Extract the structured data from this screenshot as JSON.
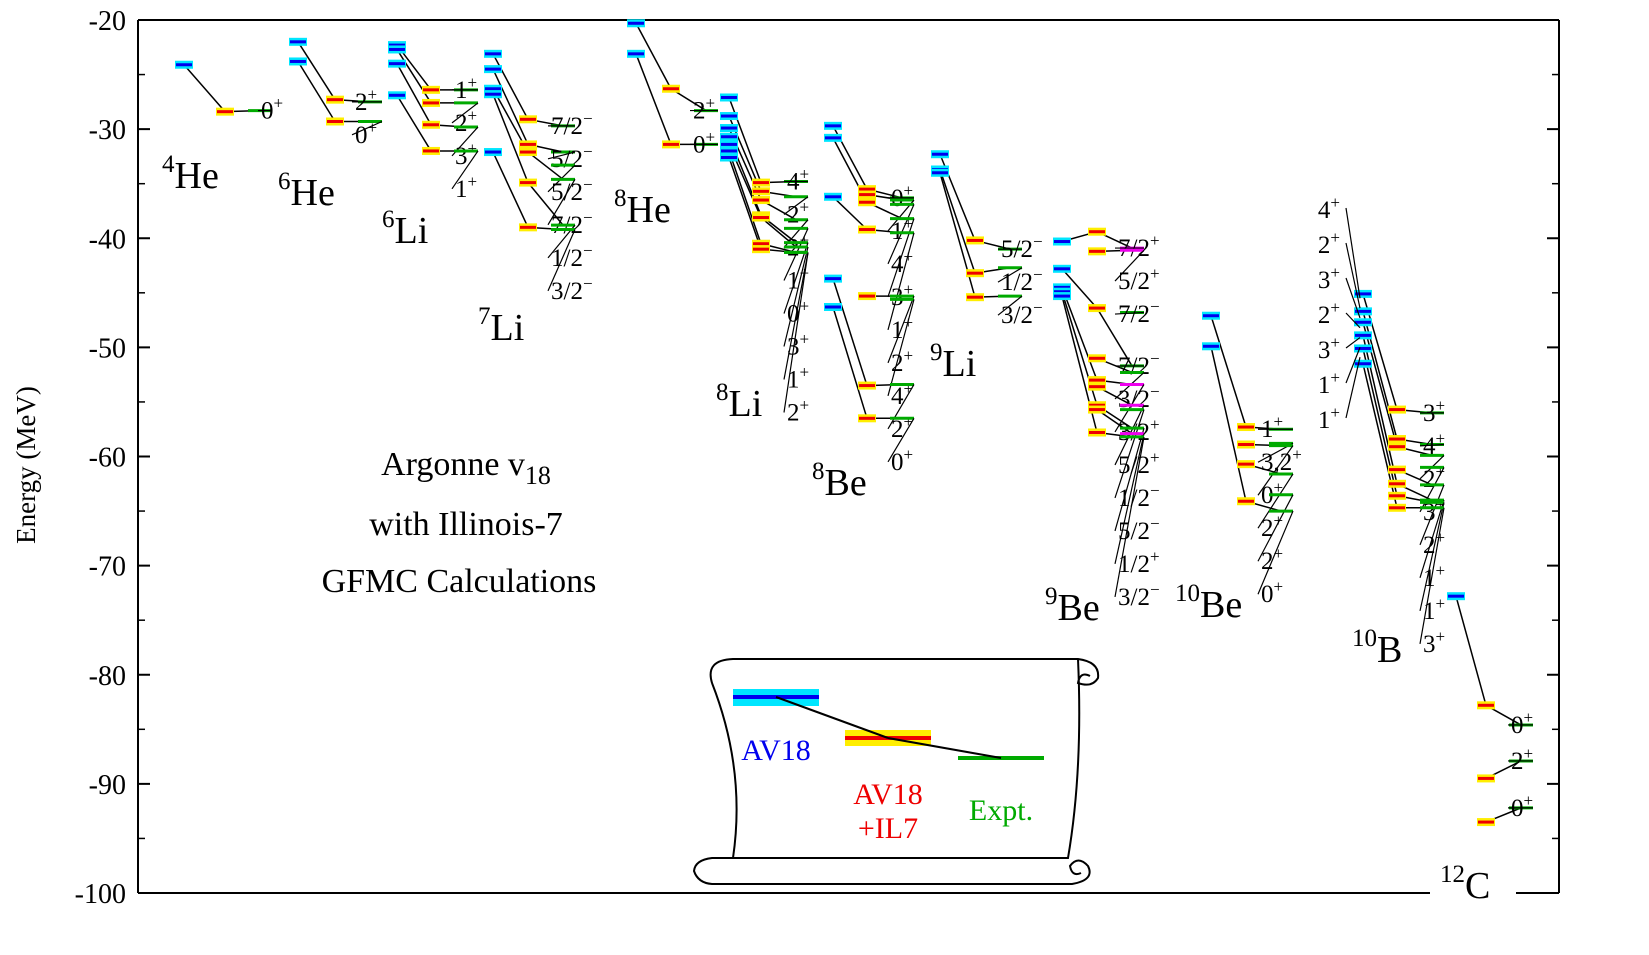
{
  "chart_data": {
    "type": "level-scheme",
    "ylabel": "Energy (MeV)",
    "ylim": [
      -100,
      -20
    ],
    "yticks": [
      -20,
      -30,
      -40,
      -50,
      -60,
      -70,
      -80,
      -90,
      -100
    ],
    "grid": false,
    "annotation": {
      "line1": "Argonne v",
      "sub": "18",
      "line2": "with Illinois-7",
      "line3": "GFMC Calculations"
    },
    "legend": {
      "placement": "bottom-center (scroll)",
      "av18_energy": -82,
      "av18il7_energy": -86,
      "expt_energy": -87.7,
      "av18_label": "AV18",
      "av18il7_label_1": "AV18",
      "av18il7_label_2": "+IL7",
      "expt_label": "Expt."
    },
    "colors": {
      "av18": "#0000ee",
      "av18_band": "#00e6ff",
      "av18il7": "#ee0000",
      "av18il7_band": "#ffee00",
      "expt": "#00aa00",
      "expt_unnatural": "#ee00ee",
      "connector": "#000000"
    },
    "nuclei": [
      {
        "name": "He",
        "mass": "4",
        "av18": [
          -24.1
        ],
        "il7": [
          -28.4
        ],
        "expt": [
          {
            "e": -28.3,
            "j": "0",
            "p": "+"
          }
        ]
      },
      {
        "name": "He",
        "mass": "6",
        "av18": [
          -22,
          -23.8
        ],
        "il7": [
          -27.3,
          -29.3
        ],
        "expt": [
          {
            "e": -27.5,
            "j": "2",
            "p": "+"
          },
          {
            "e": -29.3,
            "j": "0",
            "p": "+"
          }
        ]
      },
      {
        "name": "Li",
        "mass": "6",
        "av18": [
          -22.3,
          -22.7,
          -24,
          -26.9
        ],
        "il7": [
          -26.4,
          -27.6,
          -29.6,
          -32
        ],
        "expt": [
          {
            "e": -26.4,
            "j": "1",
            "p": "+"
          },
          {
            "e": -27.6,
            "j": "2",
            "p": "+"
          },
          {
            "e": -29.8,
            "j": "3",
            "p": "+"
          },
          {
            "e": -32,
            "j": "1",
            "p": "+"
          }
        ]
      },
      {
        "name": "Li",
        "mass": "7",
        "av18": [
          -23.1,
          -24.5,
          -26.3,
          -26.8,
          -32.1
        ],
        "il7": [
          -29.1,
          -31.4,
          -32.1,
          -34.9,
          -39
        ],
        "expt": [
          {
            "e": -29.7,
            "j": "7/2",
            "p": "−"
          },
          {
            "e": -32.1,
            "j": "5/2",
            "p": "−"
          },
          {
            "e": -33.3,
            "j": "5/2",
            "p": "−"
          },
          {
            "e": -34.6,
            "j": "7/2",
            "p": "−"
          },
          {
            "e": -38.8,
            "j": "1/2",
            "p": "−"
          },
          {
            "e": -39.2,
            "j": "3/2",
            "p": "−"
          }
        ]
      },
      {
        "name": "He",
        "mass": "8",
        "av18": [
          -20.3,
          -23.1
        ],
        "il7": [
          -26.3,
          -31.4
        ],
        "expt": [
          {
            "e": -28.3,
            "j": "2",
            "p": "+"
          },
          {
            "e": -31.4,
            "j": "0",
            "p": "+"
          }
        ]
      },
      {
        "name": "Li",
        "mass": "8",
        "av18": [
          -27.1,
          -28.8,
          -29.9,
          -30.7,
          -31.4,
          -32,
          -32.6
        ],
        "il7": [
          -34.9,
          -35.7,
          -36.5,
          -37.9,
          -38.1,
          -40.5,
          -41
        ],
        "expt": [
          {
            "e": -34.8,
            "j": "4",
            "p": "+"
          },
          {
            "e": -36.2,
            "j": "2",
            "p": "+"
          },
          {
            "e": -38.3,
            "j": "2",
            "p": "+"
          },
          {
            "e": -39.1,
            "j": "1",
            "p": "+"
          },
          {
            "e": -40.4,
            "j": "0",
            "p": "+"
          },
          {
            "e": -40.8,
            "j": "3",
            "p": "+"
          },
          {
            "e": -41.3,
            "j": "1",
            "p": "+"
          },
          {
            "e": -41.3,
            "j": "2",
            "p": "+"
          }
        ]
      },
      {
        "name": "Be",
        "mass": "8",
        "av18": [
          -29.7,
          -30.8,
          -36.2,
          -43.7,
          -46.3
        ],
        "il7": [
          -35.5,
          -36,
          -36.7,
          -39.2,
          -45.3,
          -53.5,
          -56.5
        ],
        "expt": [
          {
            "e": -36.3,
            "j": "0",
            "p": "+"
          },
          {
            "e": -36.5,
            "j": "1",
            "p": "+"
          },
          {
            "e": -36.9,
            "j": "4",
            "p": "+"
          },
          {
            "e": -38.2,
            "j": "3",
            "p": "+"
          },
          {
            "e": -39.5,
            "j": "1",
            "p": "+"
          },
          {
            "e": -45.3,
            "j": "2",
            "p": "+"
          },
          {
            "e": -45.6,
            "j": "4",
            "p": "+"
          },
          {
            "e": -53.4,
            "j": "2",
            "p": "+"
          },
          {
            "e": -56.5,
            "j": "0",
            "p": "+"
          }
        ]
      },
      {
        "name": "Li",
        "mass": "9",
        "av18": [
          -32.3,
          -33.7,
          -34
        ],
        "il7": [
          -40.2,
          -43.2,
          -45.4
        ],
        "expt": [
          {
            "e": -41,
            "j": "5/2",
            "p": "−"
          },
          {
            "e": -42.7,
            "j": "1/2",
            "p": "−"
          },
          {
            "e": -45.3,
            "j": "3/2",
            "p": "−"
          }
        ]
      },
      {
        "name": "Be",
        "mass": "9",
        "av18": [
          -40.3,
          -42.8,
          -44.5,
          -44.9,
          -45.3
        ],
        "il7": [
          -39.4,
          -41.2,
          -46.4,
          -51,
          -53,
          -53.6,
          -55.3,
          -55.7,
          -57.8
        ],
        "expt": [
          {
            "e": -40.9,
            "j": "7/2",
            "p": "+"
          },
          {
            "e": -41.1,
            "j": "5/2",
            "p": "+"
          },
          {
            "e": -46.8,
            "j": "7/2",
            "p": "−"
          },
          {
            "e": -51.7,
            "j": "7/2",
            "p": "−"
          },
          {
            "e": -52.3,
            "j": "3/2",
            "p": "−"
          },
          {
            "e": -53.4,
            "j": "3/2",
            "p": "+"
          },
          {
            "e": -55.3,
            "j": "5/2",
            "p": "+"
          },
          {
            "e": -55.7,
            "j": "1/2",
            "p": "−"
          },
          {
            "e": -57.4,
            "j": "5/2",
            "p": "−"
          },
          {
            "e": -57.9,
            "j": "1/2",
            "p": "+"
          },
          {
            "e": -58.2,
            "j": "3/2",
            "p": "−"
          }
        ]
      },
      {
        "name": "Be",
        "mass": "10",
        "av18": [
          -47.1,
          -49.9
        ],
        "il7": [
          -57.3,
          -58.9,
          -60.7,
          -64.1
        ],
        "expt": [
          {
            "e": -57.5,
            "j": "1",
            "p": "+"
          },
          {
            "e": -58.8,
            "j": "3,2",
            "p": "+"
          },
          {
            "e": -59,
            "j": "0",
            "p": "+"
          },
          {
            "e": -61.6,
            "j": "2",
            "p": "+"
          },
          {
            "e": -63.5,
            "j": "2",
            "p": "+"
          },
          {
            "e": -65,
            "j": "0",
            "p": "+"
          }
        ]
      },
      {
        "name": "B",
        "mass": "10",
        "av18": [
          -45.1,
          -46.7,
          -47.7,
          -48.9,
          -50.1,
          -51.5
        ],
        "il7": [
          -55.7,
          -58.4,
          -59.1,
          -61.2,
          -62.5,
          -63.6,
          -64.7
        ],
        "expt": [
          {
            "e": -56,
            "j": "3",
            "p": "+"
          },
          {
            "e": -58.9,
            "j": "4",
            "p": "+"
          },
          {
            "e": -59.9,
            "j": "2",
            "p": "+"
          },
          {
            "e": -61,
            "j": "3",
            "p": "+"
          },
          {
            "e": -62.6,
            "j": "2",
            "p": "+"
          },
          {
            "e": -64,
            "j": "1",
            "p": "+"
          },
          {
            "e": -64.2,
            "j": "1",
            "p": "+"
          },
          {
            "e": -64.7,
            "j": "3",
            "p": "+"
          }
        ]
      },
      {
        "name": "C",
        "mass": "12",
        "av18": [
          -72.8
        ],
        "il7": [
          -82.8,
          -89.5,
          -93.5
        ],
        "expt": [
          {
            "e": -84.6,
            "j": "0",
            "p": "+"
          },
          {
            "e": -87.9,
            "j": "2",
            "p": "+"
          },
          {
            "e": -92.2,
            "j": "0",
            "p": "+"
          }
        ]
      }
    ],
    "left_labels_10B": [
      {
        "j": "4",
        "p": "+"
      },
      {
        "j": "2",
        "p": "+"
      },
      {
        "j": "3",
        "p": "+"
      },
      {
        "j": "2",
        "p": "+"
      },
      {
        "j": "3",
        "p": "+"
      },
      {
        "j": "1",
        "p": "+"
      },
      {
        "j": "1",
        "p": "+"
      }
    ]
  }
}
